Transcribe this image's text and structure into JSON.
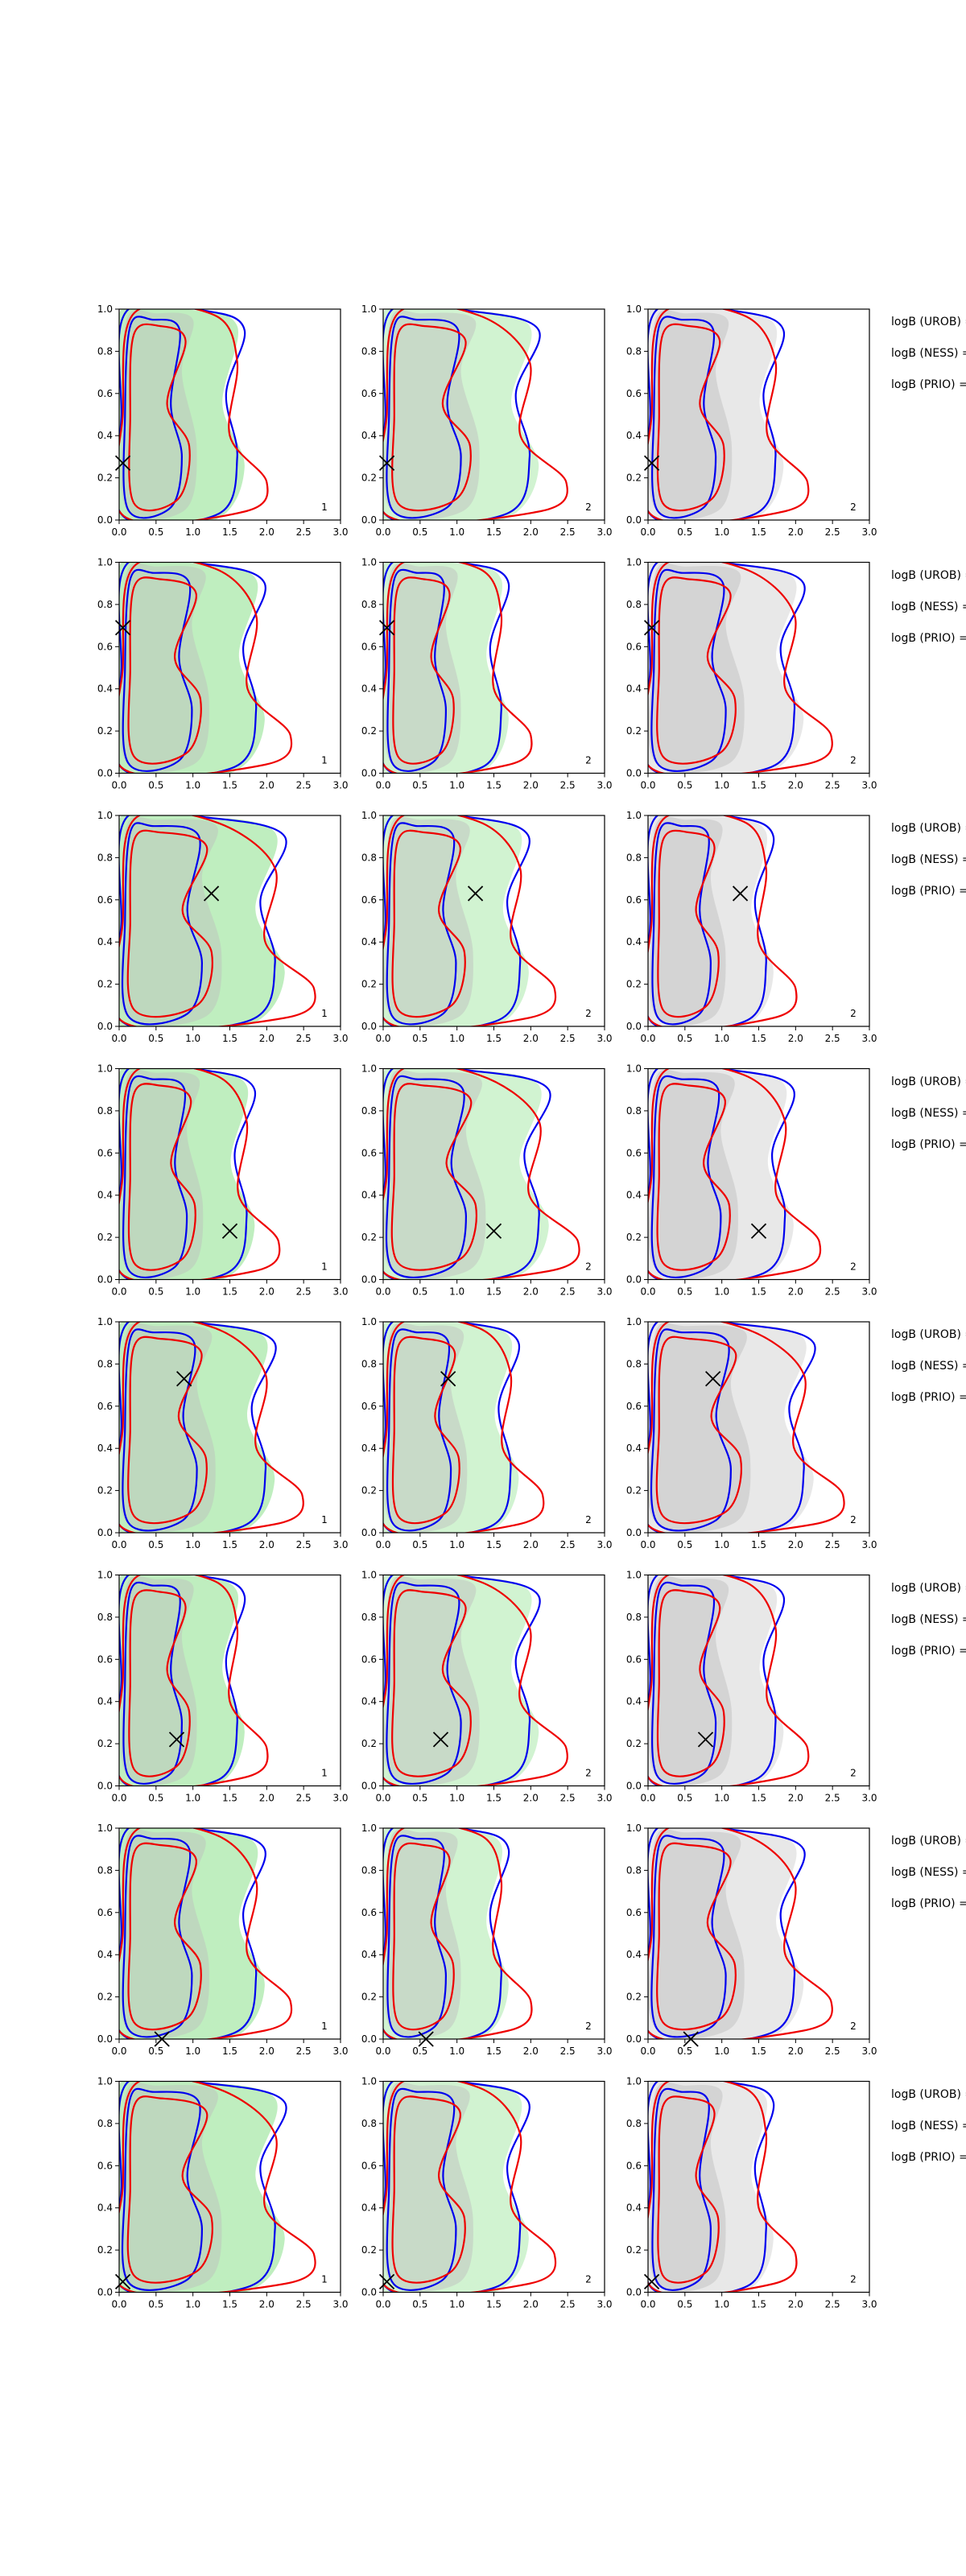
{
  "colors": {
    "contour_a": "#0000ee",
    "contour_b": "#ee0000",
    "fill_green": "#8be08b",
    "fill_grey": "#bdbdbd",
    "marker": "#000000"
  },
  "axes": {
    "xlim": [
      0,
      3
    ],
    "ylim": [
      0,
      1
    ],
    "x_ticks": [
      "0.0",
      "0.5",
      "1.0",
      "1.5",
      "2.0",
      "2.5",
      "3.0"
    ],
    "y_ticks": [
      "0.0",
      "0.2",
      "0.4",
      "0.6",
      "0.8",
      "1.0"
    ]
  },
  "chart_data": {
    "type": "contour",
    "grid": "8 rows x 3 columns of small-multiple panels",
    "column_panel_labels": [
      "1",
      "2",
      "2"
    ],
    "row_annotations": [
      "logB (UROB) =",
      "logB (NESS) =",
      "logB (PRIO) ="
    ],
    "rows": [
      {
        "marker": [
          0.05,
          0.27
        ]
      },
      {
        "marker": [
          0.05,
          0.69
        ]
      },
      {
        "marker": [
          1.25,
          0.63
        ]
      },
      {
        "marker": [
          1.5,
          0.23
        ]
      },
      {
        "marker": [
          0.88,
          0.73
        ]
      },
      {
        "marker": [
          0.78,
          0.22
        ]
      },
      {
        "marker": [
          0.58,
          0.0
        ]
      },
      {
        "marker": [
          0.05,
          0.05
        ]
      }
    ]
  }
}
